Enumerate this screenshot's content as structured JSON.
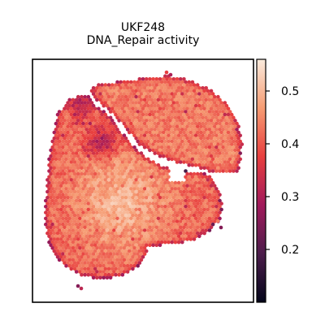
{
  "chart_data": {
    "type": "scatter",
    "title_lines": [
      "UKF248",
      "DNA_Repair activity"
    ],
    "xlabel": "",
    "ylabel": "",
    "colorbar": {
      "min": 0.1,
      "max": 0.56,
      "ticks": [
        0.2,
        0.3,
        0.4,
        0.5
      ],
      "tick_labels": [
        "0.2",
        "0.3",
        "0.4",
        "0.5"
      ],
      "colormap": "rocket",
      "colors": [
        "#03051a",
        "#4c1d4b",
        "#a11a5b",
        "#e83f3f",
        "#f69c73",
        "#faebdd"
      ]
    },
    "grid": false,
    "axes_ticks": false,
    "description_of_marks": "Hexagonal spatial transcriptomics spots colored by DNA_Repair activity score; majority 0.35-0.5, lighter core, darker spots near edges and a dark cluster upper-left-center."
  }
}
